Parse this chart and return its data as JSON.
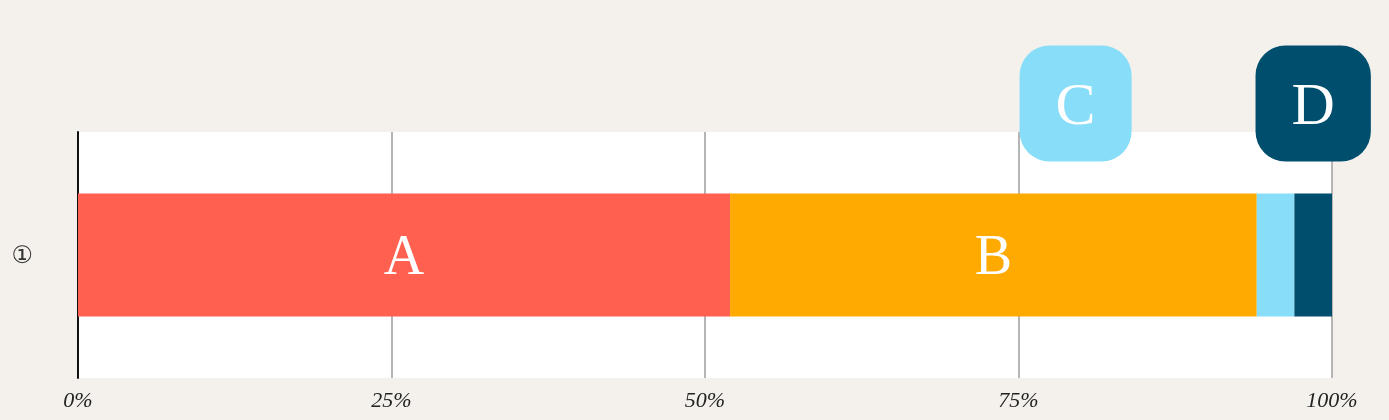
{
  "chart_data": {
    "type": "bar",
    "orientation": "horizontal",
    "stacked": true,
    "categories": [
      "①"
    ],
    "series": [
      {
        "name": "A",
        "color": "#ff6050",
        "values": [
          52
        ]
      },
      {
        "name": "B",
        "color": "#ffaa00",
        "values": [
          42
        ]
      },
      {
        "name": "C",
        "color": "#88ddf8",
        "values": [
          3
        ]
      },
      {
        "name": "D",
        "color": "#004e6e",
        "values": [
          3
        ]
      }
    ],
    "xlim": [
      0,
      100
    ],
    "xticks": [
      {
        "value": 0,
        "label": "0%"
      },
      {
        "value": 25,
        "label": "25%"
      },
      {
        "value": 50,
        "label": "50%"
      },
      {
        "value": 75,
        "label": "75%"
      },
      {
        "value": 100,
        "label": "100%"
      }
    ],
    "grid": "x",
    "legend": false
  }
}
